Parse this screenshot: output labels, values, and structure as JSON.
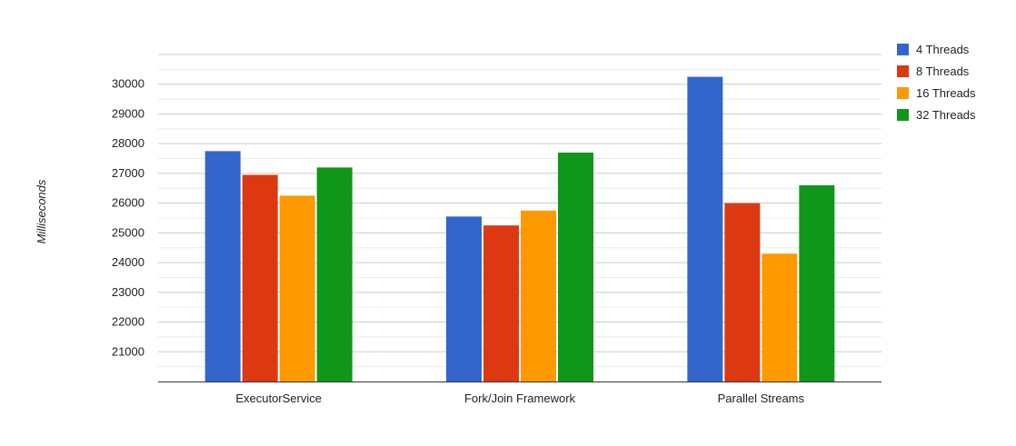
{
  "chart_data": {
    "type": "bar",
    "title": "",
    "xlabel": "",
    "ylabel": "Milliseconds",
    "categories": [
      "ExecutorService",
      "Fork/Join Framework",
      "Parallel Streams"
    ],
    "series": [
      {
        "name": "4 Threads",
        "color": "#3366cc",
        "values": [
          27750,
          25550,
          30250
        ]
      },
      {
        "name": "8 Threads",
        "color": "#dc3912",
        "values": [
          26950,
          25250,
          26000
        ]
      },
      {
        "name": "16 Threads",
        "color": "#ff9900",
        "values": [
          26250,
          25750,
          24300
        ]
      },
      {
        "name": "32 Threads",
        "color": "#109618",
        "values": [
          27200,
          27700,
          26600
        ]
      }
    ],
    "ylim": [
      20000,
      31000
    ],
    "yticks": [
      21000,
      22000,
      23000,
      24000,
      25000,
      26000,
      27000,
      28000,
      29000,
      30000
    ],
    "ytick_labels": [
      "21000",
      "22000",
      "23000",
      "24000",
      "25000",
      "26000",
      "27000",
      "28000",
      "29000",
      "30000"
    ],
    "grid": true,
    "legend_position": "right"
  }
}
